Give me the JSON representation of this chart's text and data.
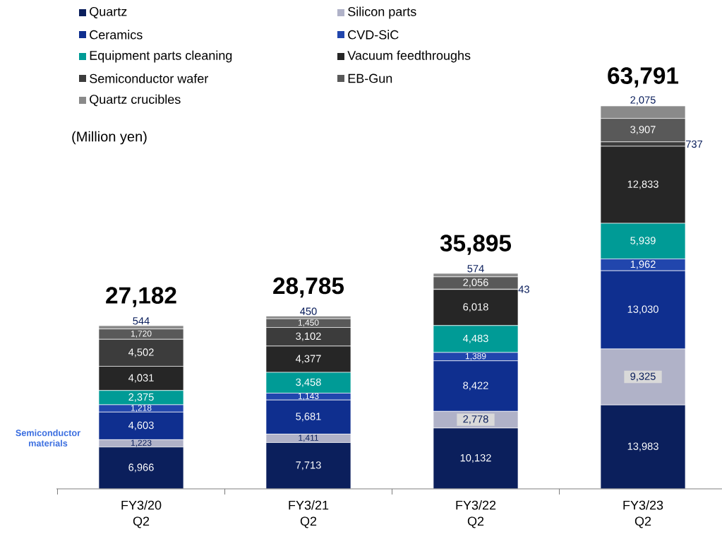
{
  "chart_data": {
    "type": "bar",
    "stacked": true,
    "legend": "top",
    "tick_labels": "x",
    "categories": [
      "FY3/20 Q2",
      "FY3/21 Q2",
      "FY3/22 Q2",
      "FY3/23 Q2"
    ],
    "series": [
      {
        "name": "Quartz",
        "color": "#0b1f5c",
        "values": [
          6966,
          7713,
          10132,
          13983
        ],
        "value_labels": [
          "6,966",
          "7,713",
          "10,132",
          "13,983"
        ]
      },
      {
        "name": "Silicon parts",
        "color": "#b0b2c8",
        "values": [
          1223,
          1411,
          2778,
          9325
        ],
        "value_labels": [
          "1,223",
          "1,411",
          "2,778",
          "9,325"
        ]
      },
      {
        "name": "Ceramics",
        "color": "#0f2f8f",
        "values": [
          4603,
          5681,
          8422,
          13030
        ],
        "value_labels": [
          "4,603",
          "5,681",
          "8,422",
          "13,030"
        ]
      },
      {
        "name": "CVD-SiC",
        "color": "#2146ad",
        "values": [
          1218,
          1143,
          1389,
          1962
        ],
        "value_labels": [
          "1,218",
          "1,143",
          "1,389",
          "1,962"
        ]
      },
      {
        "name": "Equipment parts cleaning",
        "color": "#009b96",
        "values": [
          2375,
          3458,
          4483,
          5939
        ],
        "value_labels": [
          "2,375",
          "3,458",
          "4,483",
          "5,939"
        ]
      },
      {
        "name": "Vacuum feedthroughs",
        "color": "#262626",
        "values": [
          4031,
          4377,
          6018,
          12833
        ],
        "value_labels": [
          "4,031",
          "4,377",
          "6,018",
          "12,833"
        ]
      },
      {
        "name": "Semiconductor wafer",
        "color": "#3c3c3c",
        "values": [
          4502,
          3102,
          43,
          737
        ],
        "value_labels": [
          "4,502",
          "3,102",
          "43",
          "737"
        ]
      },
      {
        "name": "EB-Gun",
        "color": "#595959",
        "values": [
          1720,
          1450,
          2056,
          3907
        ],
        "value_labels": [
          "1,720",
          "1,450",
          "2,056",
          "3,907"
        ]
      },
      {
        "name": "Quartz crucibles",
        "color": "#8a8a8a",
        "values": [
          544,
          450,
          574,
          2075
        ],
        "value_labels": [
          "544",
          "450",
          "574",
          "2,075"
        ]
      }
    ],
    "totals": [
      "27,182",
      "28,785",
      "35,895",
      "63,791"
    ],
    "annotations": [
      "(Million yen)",
      "Semiconductor materials"
    ]
  }
}
